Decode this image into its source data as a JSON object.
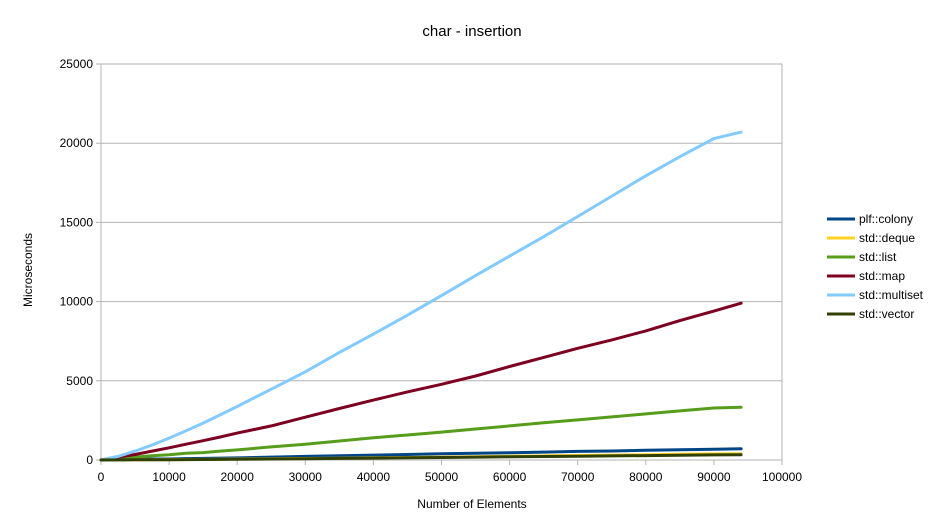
{
  "chart_data": {
    "type": "line",
    "title": "char - insertion",
    "xlabel": "Number of Elements",
    "ylabel": "Microseconds",
    "xlim": [
      0,
      100000
    ],
    "ylim": [
      0,
      25000
    ],
    "xticks": [
      0,
      10000,
      20000,
      30000,
      40000,
      50000,
      60000,
      70000,
      80000,
      90000,
      100000
    ],
    "yticks": [
      0,
      5000,
      10000,
      15000,
      20000,
      25000
    ],
    "grid": "horizontal",
    "legend_position": "right",
    "x": [
      1,
      2500,
      5000,
      7500,
      10000,
      12500,
      15000,
      17500,
      20000,
      25000,
      30000,
      35000,
      40000,
      45000,
      50000,
      55000,
      60000,
      65000,
      70000,
      75000,
      80000,
      85000,
      90000,
      94000
    ],
    "series": [
      {
        "name": "plf::colony",
        "color": "#004586",
        "values": [
          0,
          20,
          40,
          60,
          60,
          90,
          100,
          120,
          130,
          180,
          230,
          270,
          310,
          350,
          390,
          430,
          460,
          500,
          540,
          570,
          610,
          650,
          680,
          710
        ]
      },
      {
        "name": "std::deque",
        "color": "#ffd320",
        "values": [
          0,
          10,
          15,
          20,
          25,
          30,
          40,
          50,
          60,
          75,
          95,
          115,
          140,
          160,
          185,
          210,
          235,
          260,
          285,
          310,
          335,
          360,
          385,
          400
        ]
      },
      {
        "name": "std::list",
        "color": "#579d1c",
        "values": [
          0,
          90,
          180,
          270,
          330,
          420,
          470,
          560,
          640,
          830,
          1000,
          1200,
          1400,
          1580,
          1760,
          1960,
          2150,
          2350,
          2530,
          2720,
          2910,
          3100,
          3280,
          3330
        ]
      },
      {
        "name": "std::map",
        "color": "#7e0021",
        "values": [
          0,
          180,
          350,
          560,
          770,
          1000,
          1220,
          1450,
          1700,
          2150,
          2700,
          3250,
          3780,
          4300,
          4780,
          5300,
          5900,
          6480,
          7050,
          7580,
          8150,
          8800,
          9400,
          9900
        ]
      },
      {
        "name": "std::multiset",
        "color": "#83caff",
        "values": [
          0,
          230,
          560,
          950,
          1380,
          1850,
          2330,
          2850,
          3380,
          4470,
          5570,
          6790,
          7950,
          9140,
          10380,
          11640,
          12870,
          14100,
          15370,
          16660,
          17940,
          19150,
          20290,
          20700
        ]
      },
      {
        "name": "std::vector",
        "color": "#314004",
        "values": [
          0,
          5,
          10,
          15,
          20,
          25,
          30,
          40,
          50,
          65,
          80,
          100,
          120,
          140,
          160,
          180,
          200,
          220,
          240,
          260,
          280,
          300,
          320,
          330
        ]
      }
    ]
  }
}
